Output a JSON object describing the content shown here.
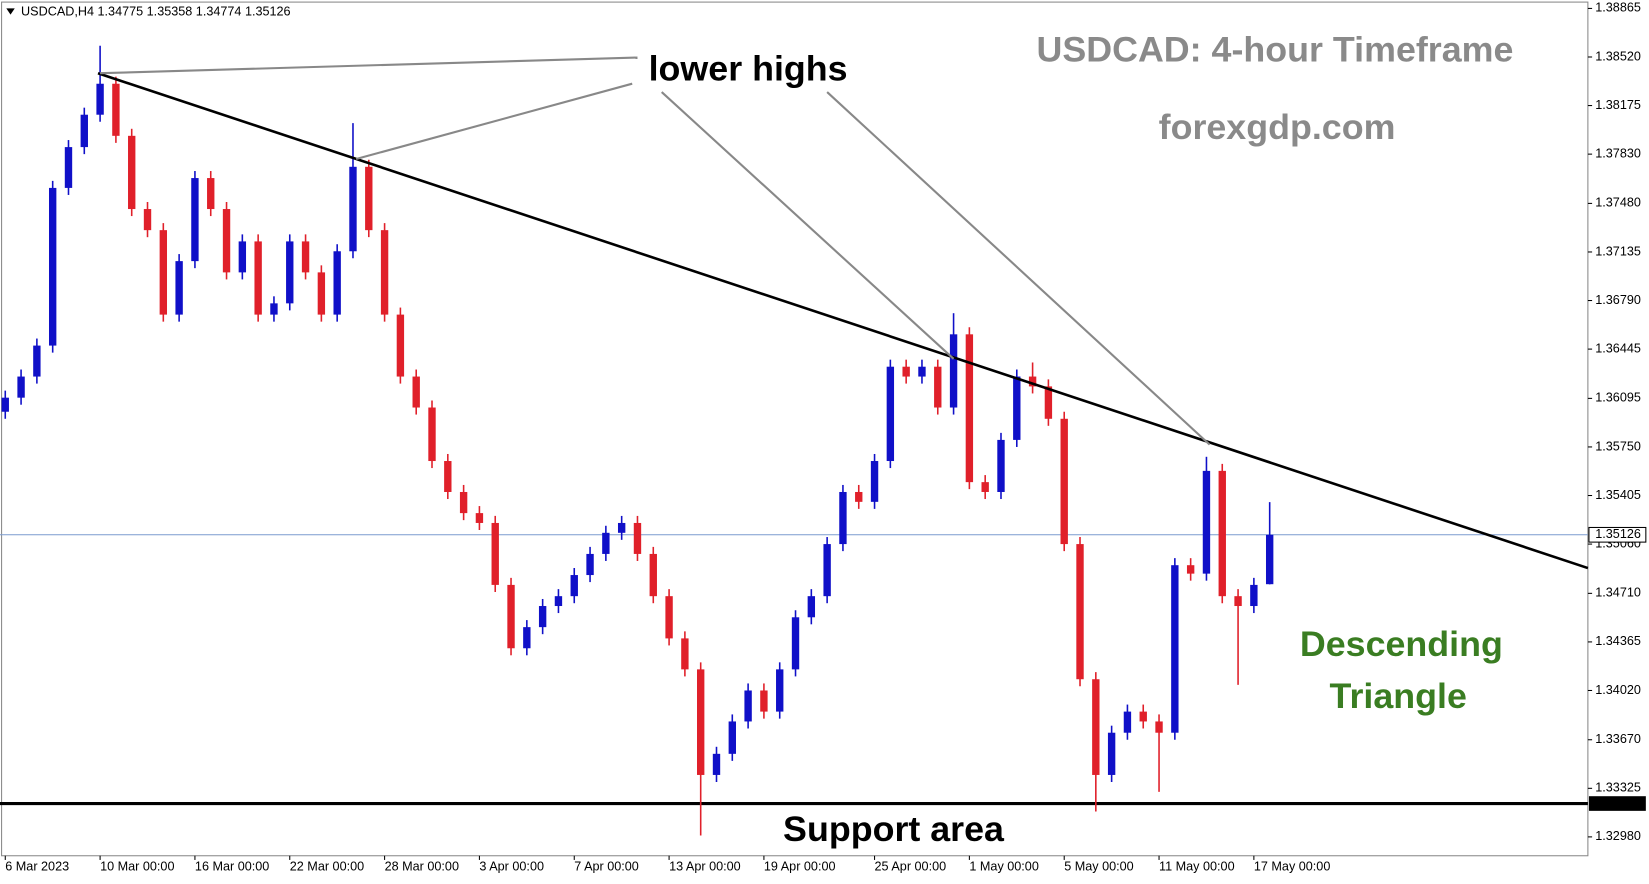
{
  "chart_data": {
    "type": "candlestick",
    "symbol": "USDCAD,H4",
    "ohlc": [
      1.34775,
      1.35358,
      1.34774,
      1.35126
    ],
    "title": "USDCAD: 4-hour Timeframe",
    "subtitle": "forexgdp.com",
    "annotations": {
      "highs": "lower highs",
      "pattern_line1": "Descending",
      "pattern_line2": "Triangle",
      "support": "Support area"
    },
    "up_color": "#1010c8",
    "down_color": "#e0202a",
    "ylim": [
      1.32846,
      1.3891
    ],
    "yticks": [
      1.38865,
      {
        "value": 1.3852,
        "label": "1.38520"
      },
      1.38175,
      {
        "value": 1.3783,
        "label": "1.37830"
      },
      {
        "value": 1.3748,
        "label": "1.37480"
      },
      1.37135,
      {
        "value": 1.3679,
        "label": "1.36790"
      },
      1.36445,
      1.36095,
      {
        "value": 1.3575,
        "label": "1.35750"
      },
      1.35405,
      {
        "value": 1.3506,
        "label": "1.35060"
      },
      {
        "value": 1.3471,
        "label": "1.34710"
      },
      1.34365,
      {
        "value": 1.3402,
        "label": "1.34020"
      },
      {
        "value": 1.3367,
        "label": "1.33670"
      },
      1.33325,
      {
        "value": 1.3298,
        "label": "1.32980"
      }
    ],
    "current_price": 1.35126,
    "support_price": 1.33217,
    "categories": [
      "6 Mar 2023",
      null,
      null,
      null,
      null,
      null,
      "10 Mar 00:00",
      null,
      null,
      null,
      null,
      null,
      "16 Mar 00:00",
      null,
      null,
      null,
      null,
      null,
      "22 Mar 00:00",
      null,
      null,
      null,
      null,
      null,
      "28 Mar 00:00",
      null,
      null,
      null,
      null,
      null,
      "3 Apr 00:00",
      null,
      null,
      null,
      null,
      null,
      "7 Apr 00:00",
      null,
      null,
      null,
      null,
      null,
      "13 Apr 00:00",
      null,
      null,
      null,
      null,
      null,
      "19 Apr 00:00",
      null,
      null,
      null,
      null,
      null,
      null,
      "25 Apr 00:00",
      null,
      null,
      null,
      null,
      null,
      "1 May 00:00",
      null,
      null,
      null,
      null,
      null,
      "5 May 00:00",
      null,
      null,
      null,
      null,
      null,
      "11 May 00:00",
      null,
      null,
      null,
      null,
      null,
      "17 May 00:00",
      null
    ],
    "candles": [
      [
        1.36,
        1.3615,
        1.3595,
        1.361
      ],
      [
        1.361,
        1.363,
        1.3605,
        1.3625
      ],
      [
        1.3625,
        1.3652,
        1.362,
        1.3647
      ],
      [
        1.3647,
        1.3764,
        1.3642,
        1.3759
      ],
      [
        1.3759,
        1.3793,
        1.3754,
        1.3788
      ],
      [
        1.3788,
        1.3816,
        1.3783,
        1.3811
      ],
      [
        1.3811,
        1.386,
        1.3806,
        1.3833
      ],
      [
        1.3833,
        1.3838,
        1.3791,
        1.3796
      ],
      [
        1.3796,
        1.3801,
        1.3739,
        1.3744
      ],
      [
        1.3744,
        1.3749,
        1.3724,
        1.3729
      ],
      [
        1.3729,
        1.3734,
        1.3664,
        1.3669
      ],
      [
        1.3669,
        1.3712,
        1.3664,
        1.3707
      ],
      [
        1.3707,
        1.3771,
        1.3702,
        1.3766
      ],
      [
        1.3766,
        1.3771,
        1.3739,
        1.3744
      ],
      [
        1.3744,
        1.3749,
        1.3694,
        1.3699
      ],
      [
        1.3699,
        1.3726,
        1.3694,
        1.3721
      ],
      [
        1.3721,
        1.3726,
        1.3664,
        1.3669
      ],
      [
        1.3669,
        1.3682,
        1.3664,
        1.3677
      ],
      [
        1.3677,
        1.3726,
        1.3672,
        1.3721
      ],
      [
        1.3721,
        1.3726,
        1.3694,
        1.3699
      ],
      [
        1.3699,
        1.3704,
        1.3664,
        1.3669
      ],
      [
        1.3669,
        1.3719,
        1.3664,
        1.3714
      ],
      [
        1.3714,
        1.3805,
        1.3709,
        1.3774
      ],
      [
        1.3774,
        1.3779,
        1.3724,
        1.3729
      ],
      [
        1.3729,
        1.3734,
        1.3664,
        1.3669
      ],
      [
        1.3669,
        1.3674,
        1.362,
        1.3625
      ],
      [
        1.3625,
        1.363,
        1.3598,
        1.3603
      ],
      [
        1.3603,
        1.3608,
        1.356,
        1.3565
      ],
      [
        1.3565,
        1.357,
        1.3538,
        1.3543
      ],
      [
        1.3543,
        1.3548,
        1.3523,
        1.3528
      ],
      [
        1.3528,
        1.3533,
        1.3516,
        1.3521
      ],
      [
        1.3521,
        1.3526,
        1.3472,
        1.3477
      ],
      [
        1.3477,
        1.3482,
        1.3427,
        1.3432
      ],
      [
        1.3432,
        1.3452,
        1.3427,
        1.3447
      ],
      [
        1.3447,
        1.3467,
        1.3442,
        1.3462
      ],
      [
        1.3462,
        1.3474,
        1.3457,
        1.3469
      ],
      [
        1.3469,
        1.3489,
        1.3464,
        1.3484
      ],
      [
        1.3484,
        1.3504,
        1.3479,
        1.3499
      ],
      [
        1.3499,
        1.3519,
        1.3494,
        1.3514
      ],
      [
        1.3514,
        1.3526,
        1.3509,
        1.3521
      ],
      [
        1.3521,
        1.3526,
        1.3494,
        1.3499
      ],
      [
        1.3499,
        1.3504,
        1.3464,
        1.3469
      ],
      [
        1.3469,
        1.3474,
        1.3434,
        1.3439
      ],
      [
        1.3439,
        1.3444,
        1.3412,
        1.3417
      ],
      [
        1.3417,
        1.3422,
        1.3299,
        1.3342
      ],
      [
        1.3342,
        1.3362,
        1.3337,
        1.3357
      ],
      [
        1.3357,
        1.3385,
        1.3352,
        1.338
      ],
      [
        1.338,
        1.3407,
        1.3375,
        1.3402
      ],
      [
        1.3402,
        1.3407,
        1.3382,
        1.3387
      ],
      [
        1.3387,
        1.3422,
        1.3382,
        1.3417
      ],
      [
        1.3417,
        1.3459,
        1.3412,
        1.3454
      ],
      [
        1.3454,
        1.3474,
        1.3449,
        1.3469
      ],
      [
        1.3469,
        1.3511,
        1.3464,
        1.3506
      ],
      [
        1.3506,
        1.3548,
        1.3501,
        1.3543
      ],
      [
        1.3543,
        1.3548,
        1.3531,
        1.3536
      ],
      [
        1.3536,
        1.357,
        1.3531,
        1.3565
      ],
      [
        1.3565,
        1.3637,
        1.356,
        1.3632
      ],
      [
        1.3632,
        1.3637,
        1.362,
        1.3625
      ],
      [
        1.3625,
        1.3637,
        1.362,
        1.3632
      ],
      [
        1.3632,
        1.3637,
        1.3598,
        1.3603
      ],
      [
        1.3603,
        1.367,
        1.3598,
        1.3655
      ],
      [
        1.3655,
        1.366,
        1.3545,
        1.355
      ],
      [
        1.355,
        1.3555,
        1.3538,
        1.3543
      ],
      [
        1.3543,
        1.3585,
        1.3538,
        1.358
      ],
      [
        1.358,
        1.363,
        1.3575,
        1.3625
      ],
      [
        1.3625,
        1.3635,
        1.3613,
        1.3618
      ],
      [
        1.3618,
        1.3623,
        1.359,
        1.3595
      ],
      [
        1.3595,
        1.36,
        1.3501,
        1.3506
      ],
      [
        1.3506,
        1.3511,
        1.3405,
        1.341
      ],
      [
        1.341,
        1.3415,
        1.3316,
        1.3342
      ],
      [
        1.3342,
        1.3377,
        1.3337,
        1.3372
      ],
      [
        1.3372,
        1.3392,
        1.3367,
        1.3387
      ],
      [
        1.3387,
        1.3392,
        1.3375,
        1.338
      ],
      [
        1.338,
        1.3385,
        1.333,
        1.3372
      ],
      [
        1.3372,
        1.3496,
        1.3367,
        1.3491
      ],
      [
        1.3491,
        1.3496,
        1.348,
        1.3485
      ],
      [
        1.3485,
        1.3568,
        1.348,
        1.3558
      ],
      [
        1.3558,
        1.3563,
        1.3464,
        1.3469
      ],
      [
        1.3469,
        1.3474,
        1.3406,
        1.3462
      ],
      [
        1.3462,
        1.3482,
        1.3457,
        1.3477
      ],
      [
        1.34775,
        1.35358,
        1.34774,
        1.35126
      ]
    ]
  }
}
